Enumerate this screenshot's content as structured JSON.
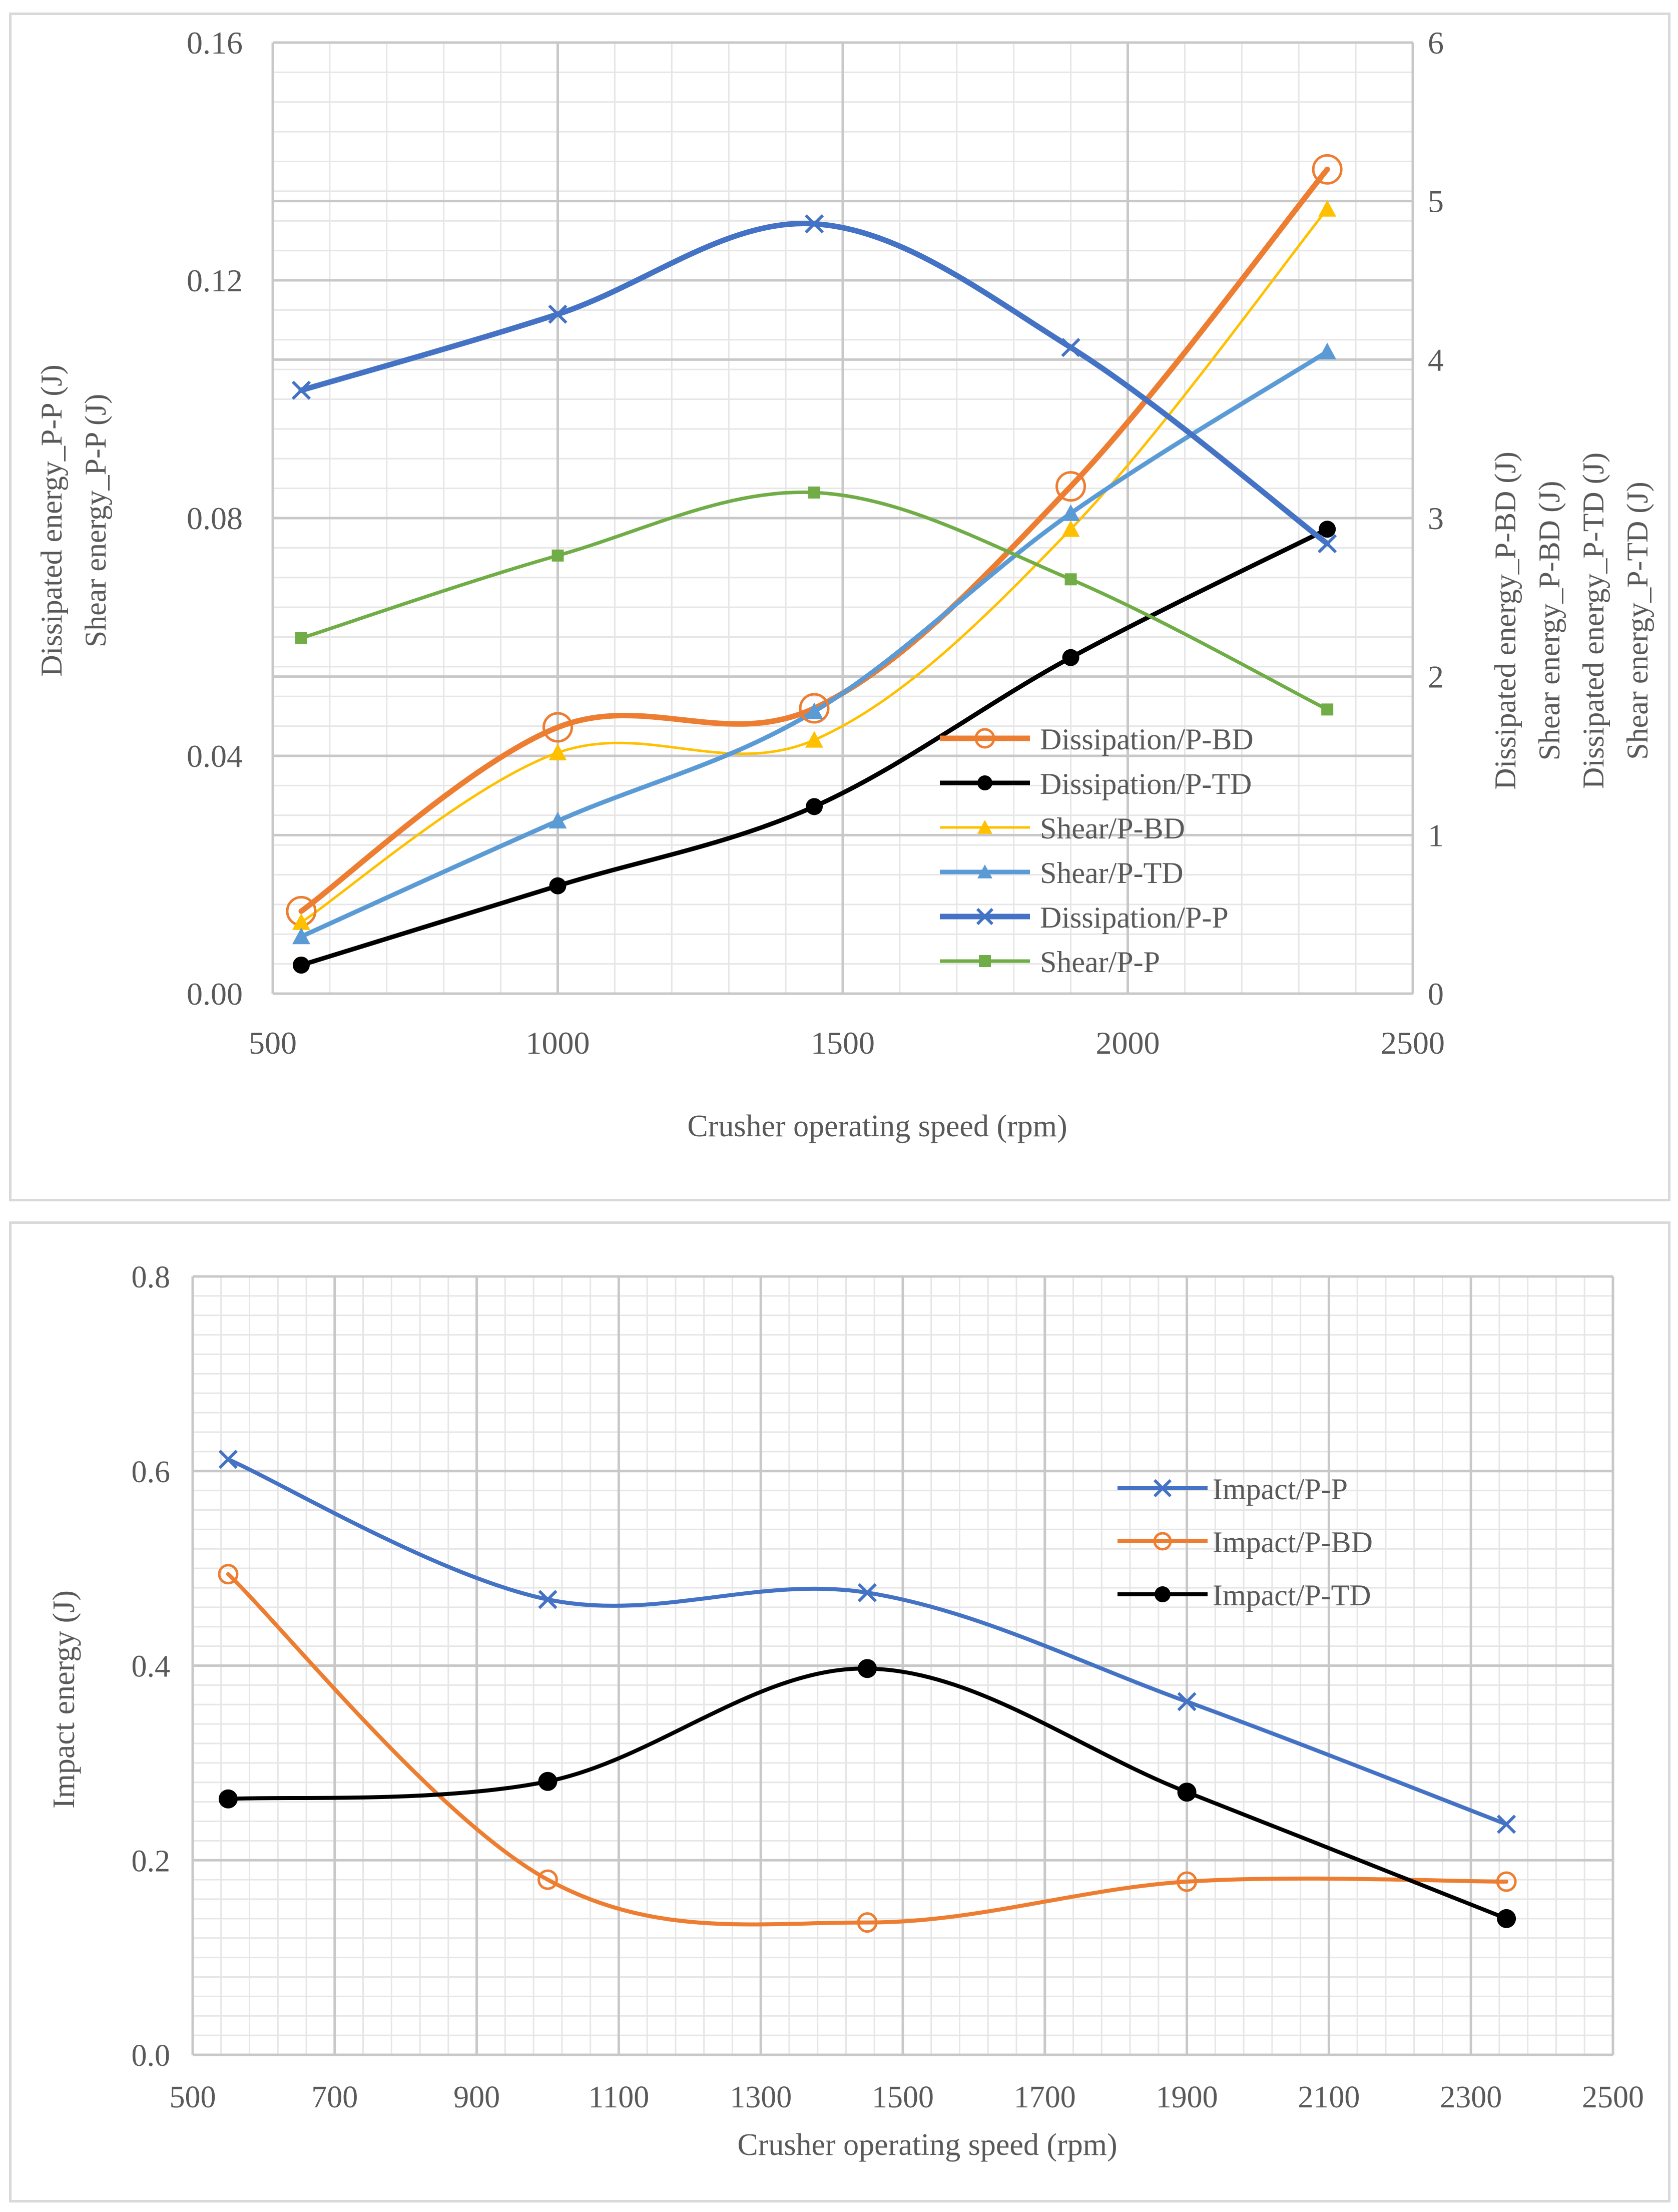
{
  "chart_data": [
    {
      "type": "line",
      "title": "",
      "xlabel": "Crusher operating speed (rpm)",
      "ylabel_left": [
        "Dissipated energy_P-P (J)",
        "Shear energy_P-P (J)"
      ],
      "ylabel_right": [
        "Dissipated energy_P-BD (J)",
        "Shear energy_P-BD (J)",
        "Dissipated energy_P-TD (J)",
        "Shear energy_P-TD (J)"
      ],
      "xlim": [
        500,
        2500
      ],
      "ylim_left": [
        0,
        0.16
      ],
      "ylim_right": [
        0,
        6
      ],
      "x_ticks": [
        "500",
        "1000",
        "1500",
        "2000",
        "2500"
      ],
      "y_left_ticks": [
        "0.00",
        "0.04",
        "0.08",
        "0.12",
        "0.16"
      ],
      "y_right_ticks": [
        "0",
        "1",
        "2",
        "3",
        "4",
        "5",
        "6"
      ],
      "grid": true,
      "legend_position": "lower-right",
      "x": [
        550,
        1000,
        1450,
        1900,
        2350
      ],
      "series": [
        {
          "name": "Dissipation/P-BD",
          "axis": "right",
          "values": [
            0.52,
            1.68,
            1.8,
            3.2,
            5.2
          ],
          "color": "#ED7D31",
          "marker": "open-circle"
        },
        {
          "name": "Dissipation/P-TD",
          "axis": "right",
          "values": [
            0.18,
            0.68,
            1.18,
            2.12,
            2.93
          ],
          "color": "#000000",
          "marker": "filled-circle"
        },
        {
          "name": "Shear/P-BD",
          "axis": "right",
          "values": [
            0.45,
            1.52,
            1.6,
            2.93,
            4.95
          ],
          "color": "#FFC000",
          "marker": "triangle"
        },
        {
          "name": "Shear/P-TD",
          "axis": "right",
          "values": [
            0.36,
            1.09,
            1.78,
            3.03,
            4.05
          ],
          "color": "#5B9BD5",
          "marker": "triangle"
        },
        {
          "name": "Dissipation/P-P",
          "axis": "left",
          "values": [
            0.1015,
            0.1143,
            0.1295,
            0.1087,
            0.0757
          ],
          "color": "#4472C4",
          "marker": "x"
        },
        {
          "name": "Shear/P-P",
          "axis": "left",
          "values": [
            0.0598,
            0.0737,
            0.0843,
            0.0697,
            0.0478
          ],
          "color": "#70AD47",
          "marker": "square"
        }
      ]
    },
    {
      "type": "line",
      "title": "",
      "xlabel": "Crusher operating speed (rpm)",
      "ylabel": "Impact energy (J)",
      "xlim": [
        500,
        2500
      ],
      "ylim": [
        0,
        0.8
      ],
      "x_ticks": [
        "500",
        "700",
        "900",
        "1100",
        "1300",
        "1500",
        "1700",
        "1900",
        "2100",
        "2300",
        "2500"
      ],
      "y_ticks": [
        "0.0",
        "0.2",
        "0.4",
        "0.6",
        "0.8"
      ],
      "grid": true,
      "legend_position": "top-right",
      "series": [
        {
          "name": "Impact/P-P",
          "x": [
            550,
            1000,
            1450,
            1900,
            2350
          ],
          "values": [
            0.612,
            0.468,
            0.475,
            0.363,
            0.237
          ],
          "color": "#4472C4",
          "marker": "x"
        },
        {
          "name": "Impact/P-BD",
          "x": [
            550,
            1000,
            1450,
            1900,
            2350
          ],
          "values": [
            0.494,
            0.18,
            0.136,
            0.178,
            0.178
          ],
          "color": "#ED7D31",
          "marker": "open-circle"
        },
        {
          "name": "Impact/P-TD",
          "x": [
            550,
            1000,
            1450,
            1900,
            2350
          ],
          "values": [
            0.263,
            0.281,
            0.397,
            0.27,
            0.14
          ],
          "color": "#000000",
          "marker": "filled-circle"
        }
      ]
    }
  ]
}
